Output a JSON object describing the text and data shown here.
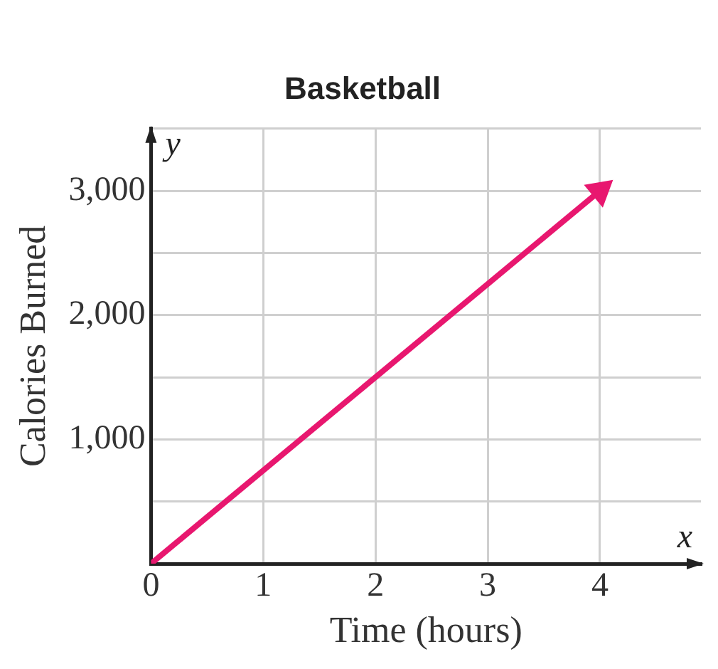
{
  "chart_data": {
    "type": "line",
    "title": "Basketball",
    "xlabel": "Time (hours)",
    "ylabel": "Calories Burned",
    "annotations": [
      "x",
      "y"
    ],
    "x": [
      0,
      4
    ],
    "series": [
      {
        "color": "#e8176f",
        "values": [
          0,
          3000
        ]
      }
    ],
    "xlim": [
      0,
      4.9
    ],
    "xticks": [
      0,
      1,
      2,
      3,
      4
    ],
    "ylim": [
      0,
      3500
    ],
    "yticks": [
      {
        "value": 0,
        "label": null
      },
      {
        "value": 500,
        "label": null
      },
      {
        "value": 1000,
        "label": "1,000"
      },
      {
        "value": 1500,
        "label": null
      },
      {
        "value": 2000,
        "label": "2,000"
      },
      {
        "value": 2500,
        "label": null
      },
      {
        "value": 3000,
        "label": "3,000"
      },
      {
        "value": 3500,
        "label": null
      }
    ],
    "grid": true,
    "legend": false,
    "line_style": "solid"
  }
}
